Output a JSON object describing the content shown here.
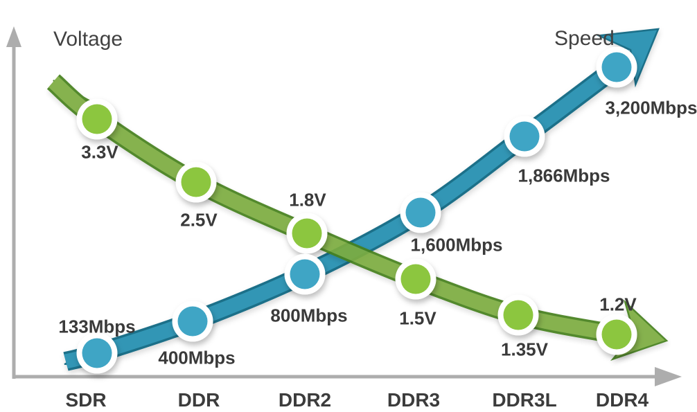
{
  "figure": {
    "background": "#ffffff",
    "axis_color": "#adadad",
    "text_color": "#3a3a3a"
  },
  "chart_data": {
    "type": "line",
    "title": "",
    "xlabel": "",
    "ylabel": "",
    "grid": false,
    "legend_position": "none",
    "x_axis_arrow": true,
    "y_axis_arrow": true,
    "categories": [
      "SDR",
      "DDR",
      "DDR2",
      "DDR3",
      "DDR3L",
      "DDR4"
    ],
    "series": [
      {
        "name": "Voltage",
        "unit": "V",
        "trend": "decreasing",
        "dot_color": "#8cc63f",
        "band_color": "#7cac40",
        "band_edge_color": "#44801f",
        "values": [
          3.3,
          2.5,
          1.8,
          1.5,
          1.35,
          1.2
        ],
        "labels": [
          "3.3V",
          "2.5V",
          "1.8V",
          "1.5V",
          "1.35V",
          "1.2V"
        ]
      },
      {
        "name": "Speed",
        "unit": "Mbps",
        "trend": "increasing",
        "dot_color": "#3fa5c5",
        "band_color": "#3096b5",
        "band_edge_color": "#1c7089",
        "values": [
          133,
          400,
          800,
          1600,
          1866,
          3200
        ],
        "labels": [
          "133Mbps",
          "400Mbps",
          "800Mbps",
          "1,600Mbps",
          "1,866Mbps",
          "3,200Mbps"
        ]
      }
    ]
  }
}
